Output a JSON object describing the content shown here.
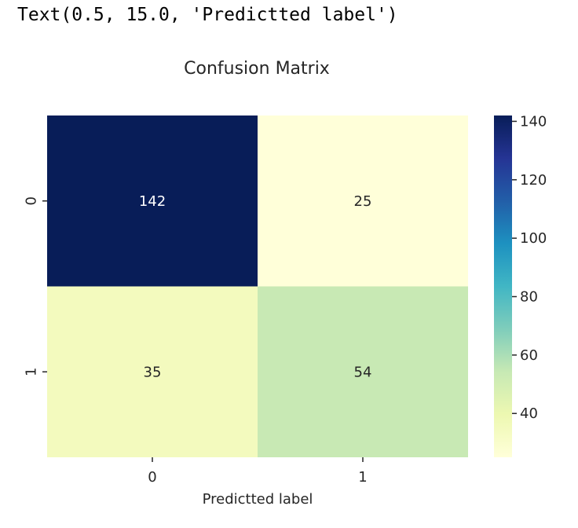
{
  "output": {
    "text": "Text(0.5, 15.0, 'Predictted label')"
  },
  "chart_data": {
    "type": "heatmap",
    "title": "Confusion Matrix",
    "xlabel": "Predictted label",
    "ylabel": "",
    "x_categories": [
      "0",
      "1"
    ],
    "y_categories": [
      "0",
      "1"
    ],
    "values": [
      [
        142,
        25
      ],
      [
        35,
        54
      ]
    ],
    "annotations": true,
    "colormap": "YlGnBu",
    "colorbar": {
      "min": 25,
      "max": 142,
      "ticks": [
        40,
        60,
        80,
        100,
        120,
        140
      ]
    },
    "grid": false,
    "colors": {
      "cell_low": "#ffffd9",
      "cell_high": "#081d58"
    }
  }
}
